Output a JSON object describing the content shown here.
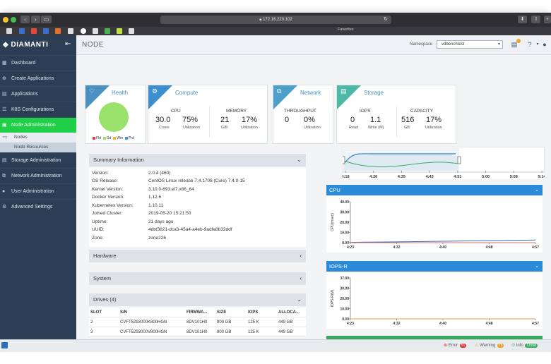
{
  "browser": {
    "url": "172.16.220.102",
    "favorites_label": "Favorites"
  },
  "sidebar": {
    "logo": "DIAMANTI",
    "items": [
      {
        "label": "Dashboard"
      },
      {
        "label": "Create Applications"
      },
      {
        "label": "Applications"
      },
      {
        "label": "K8S Configurations"
      },
      {
        "label": "Node Administration"
      },
      {
        "label": "Storage Administration"
      },
      {
        "label": "Network Administration"
      },
      {
        "label": "User Administration"
      },
      {
        "label": "Advanced Settings"
      }
    ],
    "sub_items": [
      {
        "label": "Nodes"
      },
      {
        "label": "Node Resources"
      }
    ]
  },
  "header": {
    "title": "NODE",
    "namespace_label": "Namespace",
    "namespace_value": "vdbenchtest"
  },
  "cards": {
    "health": {
      "title": "Health",
      "legend": [
        "Fld",
        "Gd",
        "Wrn",
        "Prd"
      ],
      "legend_colors": [
        "#e04040",
        "#9be26c",
        "#f0b030",
        "#4a90d0"
      ]
    },
    "compute": {
      "title": "Compute",
      "cpu_label": "CPU",
      "memory_label": "MEMORY",
      "cores": "30.0",
      "cores_unit": "Cores",
      "cpu_util": "75%",
      "cpu_util_label": "Utilization",
      "mem": "21",
      "mem_unit": "GiB",
      "mem_util": "17%",
      "mem_util_label": "Utilization"
    },
    "network": {
      "title": "Network",
      "throughput_label": "THROUGHPUT",
      "tp_value": "0",
      "tp_util": "0%",
      "tp_util_label": "Utilization"
    },
    "storage": {
      "title": "Storage",
      "iops_label": "IOPS",
      "capacity_label": "CAPACITY",
      "read": "0",
      "read_label": "Read",
      "write": "1.1",
      "write_label": "Write (M)",
      "cap": "516",
      "cap_unit": "GB",
      "cap_util": "17%",
      "cap_util_label": "Utilization"
    }
  },
  "summary": {
    "title": "Summary Information",
    "rows": [
      {
        "k": "Version:",
        "v": "2.0.4 (460)"
      },
      {
        "k": "OS Release:",
        "v": "CentOS Linux release 7.4.1708 (Core) 7.4.0-15"
      },
      {
        "k": "Kernel Version:",
        "v": "3.10.0-693.el7.x86_64"
      },
      {
        "k": "Docker Version:",
        "v": "1.12.6"
      },
      {
        "k": "Kubernetes Version:",
        "v": "1.10.11"
      },
      {
        "k": "Joined Cluster:",
        "v": "2019-05-20 15:21:50"
      },
      {
        "k": "Uptime:",
        "v": "21 days ago"
      },
      {
        "k": "UUID:",
        "v": "4dbf3821-dca3-45a4-a4eb-9adfa8b32ddf"
      },
      {
        "k": "Zone:",
        "v": "zone226"
      }
    ]
  },
  "panels": {
    "hardware": "Hardware",
    "system": "System",
    "drives": "Drives (4)"
  },
  "drives": {
    "columns": [
      "SLOT",
      "S/N",
      "FIRMWA...",
      "SIZE",
      "IOPS",
      "ALLOCA..."
    ],
    "rows": [
      [
        "2",
        "CVFT5293000K800HGN",
        "8DV101H0",
        "800 GB",
        "125 K",
        "449 GB"
      ],
      [
        "3",
        "CVFT5293000V800HGN",
        "8DV101H0",
        "800 GB",
        "125 K",
        "449 GB"
      ]
    ]
  },
  "timeline": {
    "ticks": [
      "4:18",
      "4:26",
      "4:35",
      "4:43",
      "4:51",
      "5:00",
      "5:08",
      "5:14"
    ]
  },
  "chart_data": [
    {
      "type": "line",
      "title": "CPU",
      "ylabel": "CPU(msec)",
      "x": [
        "4:23",
        "4:32",
        "4:40",
        "4:48",
        "4:57"
      ],
      "yticks": [
        "40.00",
        "30.00",
        "20.00",
        "10.00",
        "0.00"
      ],
      "ylim": [
        0,
        40
      ],
      "series": [
        {
          "values": [
            0.3,
            0.8,
            1.4,
            2.0,
            2.6
          ],
          "color": "#2b6fb8"
        },
        {
          "values": [
            0,
            0,
            0,
            0,
            0
          ],
          "color": "#e86a6a"
        }
      ]
    },
    {
      "type": "line",
      "title": "IOPS-R",
      "ylabel": "IOPS-R(M)",
      "x": [
        "4:23",
        "4:32",
        "4:40",
        "4:48",
        "4:57"
      ],
      "yticks": [
        "37.00",
        "30.00",
        "20.00",
        "10.00",
        "0.00"
      ],
      "ylim": [
        0,
        37
      ],
      "series": [
        {
          "values": [
            0,
            0,
            0,
            0,
            0
          ],
          "color": "#e89a4a"
        }
      ]
    }
  ],
  "statusbar": {
    "error_label": "Error",
    "error_count": "51",
    "warning_label": "Warning",
    "warning_count": "75",
    "info_label": "Info",
    "info_count": "11558"
  }
}
